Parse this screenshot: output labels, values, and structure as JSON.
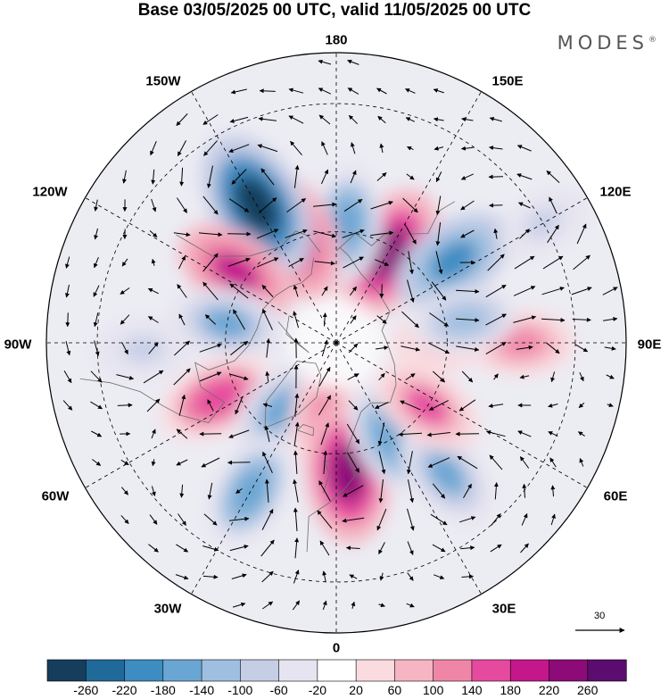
{
  "title": "Base 03/05/2025 00 UTC, valid 11/05/2025 00 UTC",
  "brand": "MODES",
  "brand_mark": "®",
  "longitude_labels": [
    "180",
    "150E",
    "120E",
    "90E",
    "60E",
    "30E",
    "0",
    "30W",
    "60W",
    "90W",
    "120W",
    "150W"
  ],
  "reference_vector": {
    "label": "30"
  },
  "colorbar": {
    "colors": [
      "#163d5c",
      "#1f6a98",
      "#3d8cc2",
      "#6aa6d3",
      "#9fbfe0",
      "#c6cee6",
      "#e6e4f0",
      "#ffffff",
      "#f9dbe0",
      "#f5b5c2",
      "#ef86a8",
      "#e64a9f",
      "#c4178c",
      "#8d0a79",
      "#5b0c6e"
    ],
    "labels": [
      "-260",
      "-220",
      "-180",
      "-140",
      "-100",
      "-60",
      "-20",
      "20",
      "60",
      "100",
      "140",
      "180",
      "220",
      "260"
    ]
  },
  "anomalies": [
    {
      "lon": 150,
      "lat": 62,
      "value": 230
    },
    {
      "lon": 175,
      "lat": 58,
      "value": -160
    },
    {
      "lon": -160,
      "lat": 60,
      "value": 190
    },
    {
      "lon": -150,
      "lat": 48,
      "value": -280
    },
    {
      "lon": -125,
      "lat": 57,
      "value": 190
    },
    {
      "lon": -100,
      "lat": 60,
      "value": -150
    },
    {
      "lon": -88,
      "lat": 40,
      "value": -90
    },
    {
      "lon": -65,
      "lat": 55,
      "value": 170
    },
    {
      "lon": -40,
      "lat": 66,
      "value": -150
    },
    {
      "lon": -30,
      "lat": 45,
      "value": -160
    },
    {
      "lon": -10,
      "lat": 70,
      "value": 120
    },
    {
      "lon": 5,
      "lat": 55,
      "value": 240
    },
    {
      "lon": 30,
      "lat": 60,
      "value": -170
    },
    {
      "lon": 40,
      "lat": 45,
      "value": -150
    },
    {
      "lon": 55,
      "lat": 60,
      "value": 150
    },
    {
      "lon": 90,
      "lat": 42,
      "value": 120
    },
    {
      "lon": 90,
      "lat": 62,
      "value": 80
    },
    {
      "lon": 125,
      "lat": 52,
      "value": -190
    },
    {
      "lon": 100,
      "lat": 55,
      "value": -120
    },
    {
      "lon": 120,
      "lat": 30,
      "value": -70
    }
  ]
}
